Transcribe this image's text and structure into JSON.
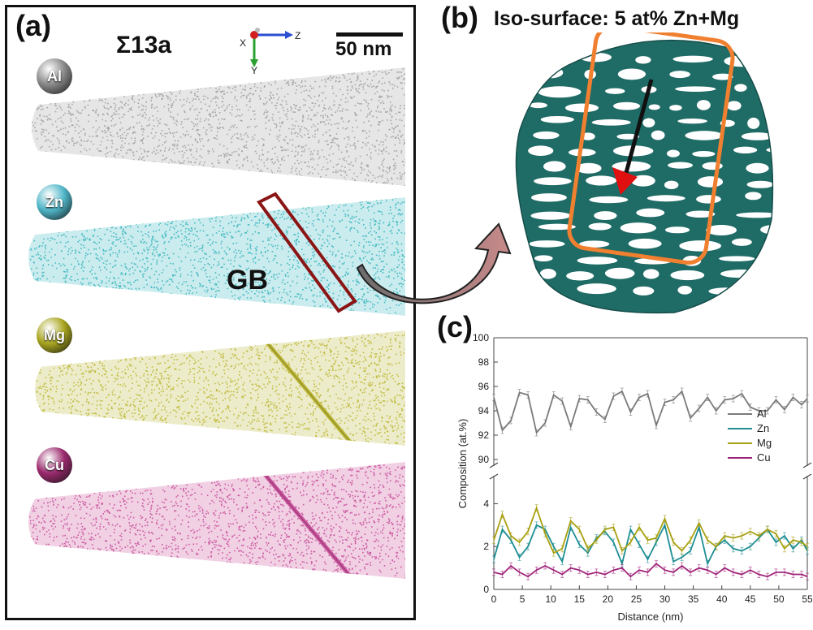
{
  "panel_a": {
    "label": "(a)",
    "sigma_label": "Σ13a",
    "scalebar_label": "50 nm",
    "axes_labels": [
      "X",
      "Z",
      "Y"
    ],
    "elements": [
      {
        "name": "Al",
        "ball_color": "#8a8a8a",
        "cloud_color": "#9a9a9a"
      },
      {
        "name": "Zn",
        "ball_color": "#4fb6c8",
        "cloud_color": "#2fb3bb"
      },
      {
        "name": "Mg",
        "ball_color": "#a8a51e",
        "cloud_color": "#b9b42a"
      },
      {
        "name": "Cu",
        "ball_color": "#9b2a6e",
        "cloud_color": "#c64595"
      }
    ],
    "gb_label": "GB"
  },
  "panel_b": {
    "label": "(b)",
    "title": "Iso-surface: 5 at% Zn+Mg",
    "iso_color": "#1f6b66",
    "box_color": "#f08030"
  },
  "panel_c": {
    "label": "(c)"
  },
  "chart_data": {
    "type": "line",
    "xlabel": "Distance (nm)",
    "ylabel": "Composition (at.%)",
    "xlim": [
      0,
      55
    ],
    "x_ticks": [
      0,
      5,
      10,
      15,
      20,
      25,
      30,
      35,
      40,
      45,
      50,
      55
    ],
    "upper_ylim": [
      90,
      100
    ],
    "upper_yticks": [
      90,
      92,
      94,
      96,
      98,
      100
    ],
    "lower_ylim": [
      0,
      5
    ],
    "lower_yticks": [
      0,
      2,
      4
    ],
    "axis_break": true,
    "legend_position": "right",
    "x": [
      0,
      1.5,
      3,
      4.5,
      6,
      7.5,
      9,
      10.5,
      12,
      13.5,
      15,
      16.5,
      18,
      19.5,
      21,
      22.5,
      24,
      25.5,
      27,
      28.5,
      30,
      31.5,
      33,
      34.5,
      36,
      37.5,
      39,
      40.5,
      42,
      43.5,
      45,
      46.5,
      48,
      49.5,
      51,
      52.5,
      54,
      55
    ],
    "series": [
      {
        "name": "Al",
        "color": "#7a7a7a",
        "values": [
          95.1,
          92.4,
          93.2,
          95.5,
          95.3,
          92.2,
          93.0,
          95.3,
          94.8,
          92.7,
          95.0,
          94.9,
          93.9,
          93.3,
          95.2,
          95.6,
          93.9,
          95.1,
          95.4,
          92.8,
          94.7,
          94.9,
          95.6,
          93.4,
          94.2,
          95.1,
          94.0,
          94.9,
          95.0,
          95.4,
          94.3,
          94.0,
          94.0,
          94.9,
          94.1,
          95.1,
          94.5,
          95.0
        ]
      },
      {
        "name": "Zn",
        "color": "#1e8e92",
        "values": [
          1.4,
          2.8,
          2.3,
          1.5,
          2.0,
          3.0,
          2.8,
          2.0,
          1.3,
          2.9,
          2.1,
          1.7,
          2.4,
          2.7,
          2.2,
          1.2,
          2.8,
          2.1,
          1.4,
          2.2,
          3.0,
          1.3,
          1.5,
          1.8,
          2.9,
          1.2,
          2.0,
          2.3,
          1.9,
          1.8,
          2.0,
          2.4,
          2.8,
          2.2,
          2.5,
          1.9,
          2.3,
          1.8
        ]
      },
      {
        "name": "Mg",
        "color": "#a8a012",
        "values": [
          2.3,
          3.5,
          2.5,
          2.2,
          2.7,
          3.8,
          2.6,
          1.7,
          1.9,
          3.2,
          2.8,
          1.9,
          2.3,
          2.8,
          2.9,
          1.8,
          2.2,
          2.9,
          2.3,
          2.4,
          3.3,
          2.2,
          1.8,
          2.3,
          3.1,
          2.3,
          2.0,
          2.5,
          2.4,
          2.5,
          2.7,
          2.5,
          2.8,
          2.6,
          1.9,
          2.3,
          2.2,
          2.0
        ]
      },
      {
        "name": "Cu",
        "color": "#a0247a",
        "values": [
          0.8,
          0.7,
          1.1,
          0.8,
          0.6,
          0.9,
          1.1,
          0.9,
          0.7,
          1.0,
          0.9,
          0.7,
          0.8,
          0.7,
          0.9,
          1.0,
          0.6,
          0.9,
          0.8,
          1.2,
          0.9,
          0.8,
          1.1,
          0.8,
          1.0,
          0.9,
          0.7,
          1.0,
          0.8,
          0.7,
          0.9,
          0.7,
          0.6,
          0.8,
          0.8,
          0.7,
          0.7,
          0.6
        ]
      }
    ]
  }
}
